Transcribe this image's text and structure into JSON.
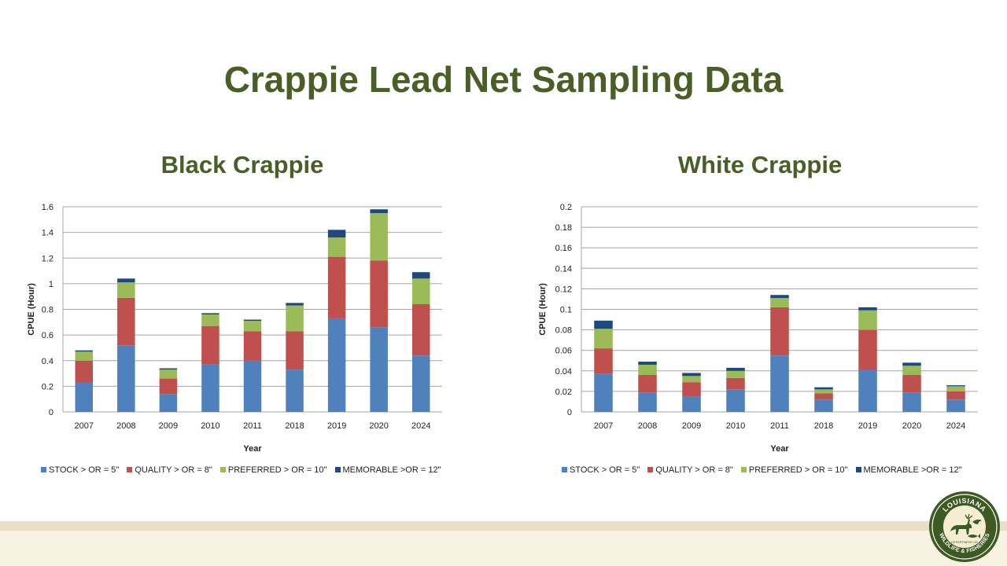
{
  "page": {
    "title": "Crappie Lead Net Sampling Data"
  },
  "colors": {
    "title": "#4a5f26",
    "stock": "#4f81bd",
    "quality": "#c0504d",
    "preferred": "#9bbb59",
    "memorable": "#1f497d"
  },
  "logo": {
    "top_text": "LOUISIANA",
    "bottom_text": "WILDLIFE & FISHERIES",
    "center_text": "DEPARTMENT OF"
  },
  "chart_data": [
    {
      "type": "bar",
      "stacked": true,
      "title": "Black Crappie",
      "xlabel": "Year",
      "ylabel": "CPUE (Hour)",
      "ylim": [
        0,
        1.6
      ],
      "yticks": [
        0,
        0.2,
        0.4,
        0.6,
        0.8,
        1,
        1.2,
        1.4,
        1.6
      ],
      "ytick_labels": [
        "0",
        "0.2",
        "0.4",
        "0.6",
        "0.8",
        "1",
        "1.2",
        "1.4",
        "1.6"
      ],
      "categories": [
        "2007",
        "2008",
        "2009",
        "2010",
        "2011",
        "2018",
        "2019",
        "2020",
        "2024"
      ],
      "series": [
        {
          "name": "STOCK > OR = 5\"",
          "color": "#4f81bd",
          "values": [
            0.23,
            0.52,
            0.14,
            0.37,
            0.4,
            0.33,
            0.73,
            0.66,
            0.44
          ]
        },
        {
          "name": "QUALITY > OR = 8\"",
          "color": "#c0504d",
          "values": [
            0.17,
            0.37,
            0.12,
            0.3,
            0.23,
            0.3,
            0.48,
            0.52,
            0.4
          ]
        },
        {
          "name": "PREFERRED > OR = 10\"",
          "color": "#9bbb59",
          "values": [
            0.07,
            0.12,
            0.07,
            0.09,
            0.08,
            0.2,
            0.15,
            0.37,
            0.2
          ]
        },
        {
          "name": "MEMORABLE >OR = 12\"",
          "color": "#1f497d",
          "values": [
            0.01,
            0.03,
            0.01,
            0.01,
            0.01,
            0.02,
            0.06,
            0.03,
            0.05
          ]
        }
      ],
      "legend": "bottom"
    },
    {
      "type": "bar",
      "stacked": true,
      "title": "White Crappie",
      "xlabel": "Year",
      "ylabel": "CPUE (Hour)",
      "ylim": [
        0,
        0.2
      ],
      "yticks": [
        0,
        0.02,
        0.04,
        0.06,
        0.08,
        0.1,
        0.12,
        0.14,
        0.16,
        0.18,
        0.2
      ],
      "ytick_labels": [
        "0",
        "0.02",
        "0.04",
        "0.06",
        "0.08",
        "0.1",
        "0.12",
        "0.14",
        "0.16",
        "0.18",
        "0.2"
      ],
      "categories": [
        "2007",
        "2008",
        "2009",
        "2010",
        "2011",
        "2018",
        "2019",
        "2020",
        "2024"
      ],
      "series": [
        {
          "name": "STOCK > OR = 5\"",
          "color": "#4f81bd",
          "values": [
            0.037,
            0.019,
            0.015,
            0.022,
            0.055,
            0.012,
            0.041,
            0.019,
            0.012
          ]
        },
        {
          "name": "QUALITY > OR = 8\"",
          "color": "#c0504d",
          "values": [
            0.025,
            0.017,
            0.014,
            0.011,
            0.047,
            0.006,
            0.039,
            0.017,
            0.008
          ]
        },
        {
          "name": "PREFERRED > OR = 10\"",
          "color": "#9bbb59",
          "values": [
            0.019,
            0.01,
            0.006,
            0.007,
            0.009,
            0.004,
            0.019,
            0.009,
            0.005
          ]
        },
        {
          "name": "MEMORABLE >OR = 12\"",
          "color": "#1f497d",
          "values": [
            0.008,
            0.003,
            0.003,
            0.003,
            0.003,
            0.002,
            0.003,
            0.003,
            0.001
          ]
        }
      ],
      "legend": "bottom"
    }
  ]
}
